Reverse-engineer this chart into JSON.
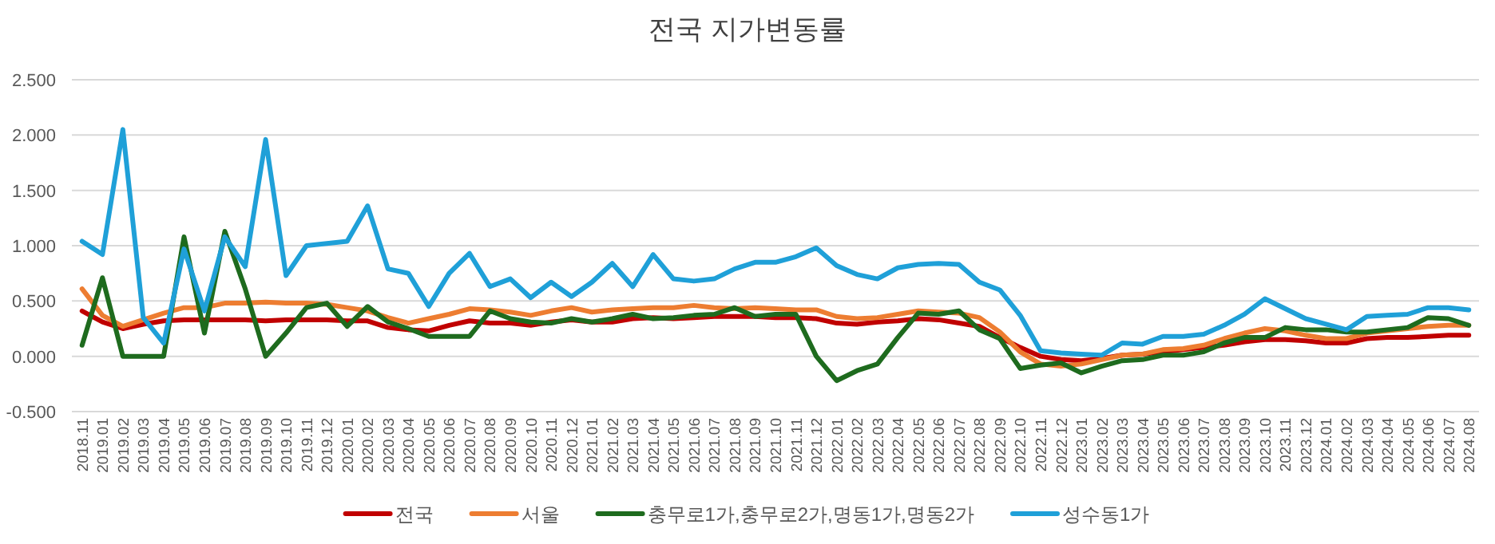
{
  "chart_data": {
    "type": "line",
    "title": "전국 지가변동률",
    "categories": [
      "2018.11",
      "2019.01",
      "2019.02",
      "2019.03",
      "2019.04",
      "2019.05",
      "2019.06",
      "2019.07",
      "2019.08",
      "2019.09",
      "2019.10",
      "2019.11",
      "2019.12",
      "2020.01",
      "2020.02",
      "2020.03",
      "2020.04",
      "2020.05",
      "2020.06",
      "2020.07",
      "2020.08",
      "2020.09",
      "2020.10",
      "2020.11",
      "2020.12",
      "2021.01",
      "2021.02",
      "2021.03",
      "2021.04",
      "2021.05",
      "2021.06",
      "2021.07",
      "2021.08",
      "2021.09",
      "2021.10",
      "2021.11",
      "2021.12",
      "2022.01",
      "2022.02",
      "2022.03",
      "2022.04",
      "2022.05",
      "2022.06",
      "2022.07",
      "2022.08",
      "2022.09",
      "2022.10",
      "2022.11",
      "2022.12",
      "2023.01",
      "2023.02",
      "2023.03",
      "2023.04",
      "2023.05",
      "2023.06",
      "2023.07",
      "2023.08",
      "2023.09",
      "2023.10",
      "2023.11",
      "2023.12",
      "2024.01",
      "2024.02",
      "2024.03",
      "2024.04",
      "2024.05",
      "2024.06",
      "2024.07",
      "2024.08"
    ],
    "series": [
      {
        "name": "전국",
        "color": "#c00000",
        "values": [
          0.41,
          0.31,
          0.25,
          0.29,
          0.32,
          0.33,
          0.33,
          0.33,
          0.33,
          0.32,
          0.33,
          0.33,
          0.33,
          0.32,
          0.32,
          0.26,
          0.24,
          0.23,
          0.28,
          0.32,
          0.3,
          0.3,
          0.28,
          0.31,
          0.33,
          0.31,
          0.31,
          0.34,
          0.35,
          0.34,
          0.35,
          0.36,
          0.36,
          0.36,
          0.35,
          0.35,
          0.34,
          0.3,
          0.29,
          0.31,
          0.32,
          0.34,
          0.33,
          0.3,
          0.27,
          0.17,
          0.08,
          0.0,
          -0.03,
          -0.04,
          -0.02,
          0.01,
          0.02,
          0.04,
          0.06,
          0.08,
          0.1,
          0.13,
          0.15,
          0.15,
          0.14,
          0.12,
          0.12,
          0.16,
          0.17,
          0.17,
          0.18,
          0.19,
          0.19
        ]
      },
      {
        "name": "서울",
        "color": "#ed7d31",
        "values": [
          0.61,
          0.37,
          0.27,
          0.33,
          0.39,
          0.44,
          0.44,
          0.48,
          0.48,
          0.49,
          0.48,
          0.48,
          0.47,
          0.44,
          0.41,
          0.35,
          0.3,
          0.34,
          0.38,
          0.43,
          0.42,
          0.4,
          0.37,
          0.41,
          0.44,
          0.4,
          0.42,
          0.43,
          0.44,
          0.44,
          0.46,
          0.44,
          0.43,
          0.44,
          0.43,
          0.42,
          0.42,
          0.36,
          0.34,
          0.35,
          0.38,
          0.41,
          0.4,
          0.39,
          0.35,
          0.22,
          0.04,
          -0.07,
          -0.09,
          -0.07,
          -0.03,
          0.01,
          0.02,
          0.06,
          0.07,
          0.1,
          0.16,
          0.21,
          0.25,
          0.23,
          0.19,
          0.16,
          0.16,
          0.21,
          0.23,
          0.25,
          0.27,
          0.28,
          0.28
        ]
      },
      {
        "name": "충무로1가,충무로2가,명동1가,명동2가",
        "color": "#1e6b1e",
        "values": [
          0.1,
          0.71,
          0.0,
          0.0,
          0.0,
          1.08,
          0.21,
          1.13,
          0.61,
          0.0,
          0.21,
          0.44,
          0.48,
          0.27,
          0.45,
          0.31,
          0.25,
          0.18,
          0.18,
          0.18,
          0.41,
          0.34,
          0.31,
          0.3,
          0.34,
          0.31,
          0.34,
          0.38,
          0.34,
          0.35,
          0.37,
          0.38,
          0.44,
          0.36,
          0.38,
          0.38,
          0.0,
          -0.22,
          -0.13,
          -0.07,
          0.17,
          0.39,
          0.38,
          0.41,
          0.24,
          0.16,
          -0.11,
          -0.08,
          -0.06,
          -0.15,
          -0.09,
          -0.04,
          -0.03,
          0.01,
          0.01,
          0.04,
          0.12,
          0.17,
          0.17,
          0.26,
          0.24,
          0.24,
          0.22,
          0.22,
          0.24,
          0.26,
          0.35,
          0.34,
          0.28
        ]
      },
      {
        "name": "성수동1가",
        "color": "#1fa0d8",
        "values": [
          1.04,
          0.92,
          2.05,
          0.35,
          0.12,
          0.97,
          0.41,
          1.08,
          0.81,
          1.96,
          0.73,
          1.0,
          1.02,
          1.04,
          1.36,
          0.79,
          0.75,
          0.45,
          0.75,
          0.93,
          0.63,
          0.7,
          0.53,
          0.67,
          0.54,
          0.67,
          0.84,
          0.63,
          0.92,
          0.7,
          0.68,
          0.7,
          0.79,
          0.85,
          0.85,
          0.9,
          0.98,
          0.82,
          0.74,
          0.7,
          0.8,
          0.83,
          0.84,
          0.83,
          0.67,
          0.6,
          0.37,
          0.05,
          0.03,
          0.02,
          0.01,
          0.12,
          0.11,
          0.18,
          0.18,
          0.2,
          0.28,
          0.38,
          0.52,
          0.43,
          0.34,
          0.29,
          0.24,
          0.36,
          0.37,
          0.38,
          0.44,
          0.44,
          0.42
        ]
      }
    ],
    "ylim": [
      -0.5,
      2.5
    ],
    "yticks": [
      {
        "value": -0.5,
        "label": "-0.500"
      },
      {
        "value": 0,
        "label": "0.000"
      },
      {
        "value": 0.5,
        "label": "0.500"
      },
      {
        "value": 1,
        "label": "1.000"
      },
      {
        "value": 1.5,
        "label": "1.500"
      },
      {
        "value": 2,
        "label": "2.000"
      },
      {
        "value": 2.5,
        "label": "2.500"
      }
    ],
    "grid": "y",
    "legend": "bottom",
    "marker": "none",
    "line_style": "solid"
  }
}
